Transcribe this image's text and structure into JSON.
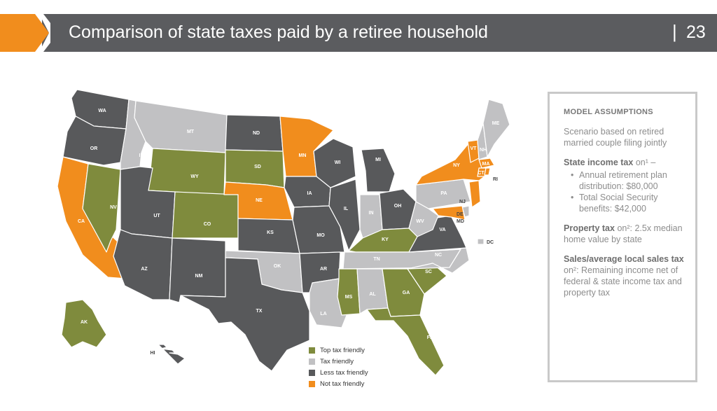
{
  "header": {
    "title": "Comparison of state taxes paid by a retiree household",
    "separator": "|",
    "page_number": "23"
  },
  "colors": {
    "top_tax_friendly": "#7f8b3d",
    "tax_friendly": "#c1c1c3",
    "less_tax_friendly": "#58595b",
    "not_tax_friendly": "#f18d1d",
    "header_bar": "#5b5c5f"
  },
  "legend": [
    {
      "label": "Top tax friendly",
      "color": "#7f8b3d"
    },
    {
      "label": "Tax friendly",
      "color": "#c1c1c3"
    },
    {
      "label": "Less tax friendly",
      "color": "#58595b"
    },
    {
      "label": "Not tax friendly",
      "color": "#f18d1d"
    }
  ],
  "state_labels": {
    "WA": "WA",
    "OR": "OR",
    "CA": "CA",
    "NV": "NV",
    "ID": "ID",
    "MT": "MT",
    "WY": "WY",
    "UT": "UT",
    "CO": "CO",
    "AZ": "AZ",
    "NM": "NM",
    "ND": "ND",
    "SD": "SD",
    "NE": "NE",
    "KS": "KS",
    "OK": "OK",
    "TX": "TX",
    "MN": "MN",
    "IA": "IA",
    "MO": "MO",
    "AR": "AR",
    "LA": "LA",
    "WI": "WI",
    "IL": "IL",
    "MI": "MI",
    "IN": "IN",
    "OH": "OH",
    "KY": "KY",
    "TN": "TN",
    "MS": "MS",
    "AL": "AL",
    "GA": "GA",
    "FL": "FL",
    "SC": "SC",
    "NC": "NC",
    "VA": "VA",
    "WV": "WV",
    "PA": "PA",
    "NY": "NY",
    "VT": "VT",
    "NH": "NH",
    "ME": "ME",
    "MA": "MA",
    "CT": "CT",
    "RI": "RI",
    "NJ": "NJ",
    "DE": "DE",
    "MD": "MD",
    "DC": "DC",
    "AK": "AK",
    "HI": "HI"
  },
  "assumptions": {
    "title": "MODEL ASSUMPTIONS",
    "scenario": "Scenario based on retired married couple filing jointly",
    "state_income_tax_label": "State income tax",
    "state_income_tax_suffix": "on¹ –",
    "bullets": [
      "Annual retirement plan distribution: $80,000",
      "Total Social Security benefits: $42,000"
    ],
    "property_tax_label": "Property tax",
    "property_tax_text": "on²: 2.5x median home value by state",
    "sales_tax_label": "Sales/average local sales tax",
    "sales_tax_text": "on²: Remaining income net of federal & state income tax and property tax"
  }
}
